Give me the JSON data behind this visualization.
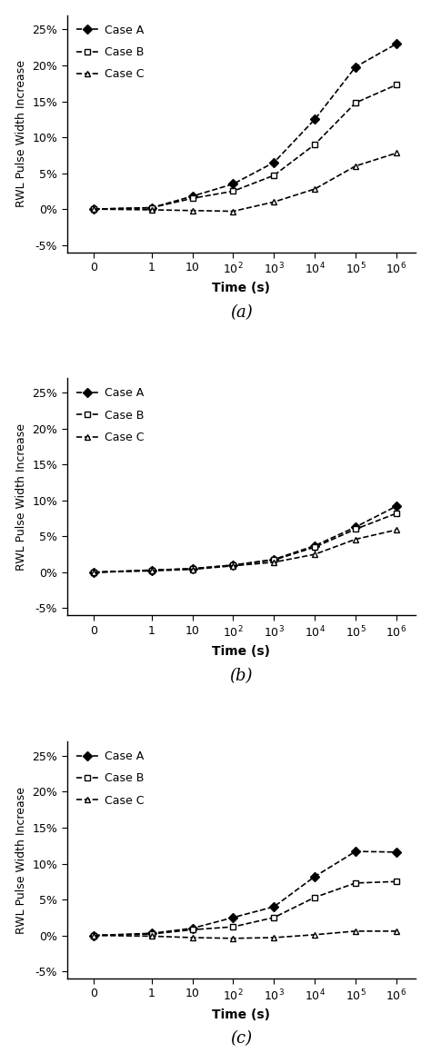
{
  "x_values": [
    0,
    1,
    10,
    100,
    1000,
    10000,
    100000,
    1000000
  ],
  "subplot_a": {
    "case_A": [
      0,
      0.002,
      0.018,
      0.035,
      0.065,
      0.125,
      0.198,
      0.23
    ],
    "case_B": [
      0,
      0.002,
      0.015,
      0.025,
      0.047,
      0.09,
      0.148,
      0.173
    ],
    "case_C": [
      0,
      -0.001,
      -0.002,
      -0.003,
      0.01,
      0.028,
      0.06,
      0.078
    ]
  },
  "subplot_b": {
    "case_A": [
      0,
      0.003,
      0.005,
      0.01,
      0.018,
      0.037,
      0.063,
      0.092
    ],
    "case_B": [
      0,
      0.003,
      0.005,
      0.01,
      0.017,
      0.035,
      0.06,
      0.082
    ],
    "case_C": [
      0,
      0.002,
      0.004,
      0.009,
      0.014,
      0.025,
      0.046,
      0.059
    ]
  },
  "subplot_c": {
    "case_A": [
      0,
      0.003,
      0.01,
      0.025,
      0.04,
      0.082,
      0.117,
      0.116
    ],
    "case_B": [
      0,
      0.002,
      0.008,
      0.012,
      0.025,
      0.053,
      0.073,
      0.075
    ],
    "case_C": [
      0,
      -0.001,
      -0.003,
      -0.004,
      -0.003,
      0.001,
      0.006,
      0.006
    ]
  },
  "ylabel": "RWL Pulse Width Increase",
  "xlabel": "Time (s)",
  "ylim": [
    -0.06,
    0.27
  ],
  "yticks": [
    -0.05,
    0.0,
    0.05,
    0.1,
    0.15,
    0.2,
    0.25
  ],
  "ytick_labels": [
    "-5%",
    "0%",
    "5%",
    "10%",
    "15%",
    "20%",
    "25%"
  ],
  "subfig_labels": [
    "(a)",
    "(b)",
    "(c)"
  ],
  "line_color": "#000000",
  "marker_A": "D",
  "marker_B": "s",
  "marker_C": "^",
  "markersize": 5,
  "linewidth": 1.2,
  "background_color": "#ffffff"
}
